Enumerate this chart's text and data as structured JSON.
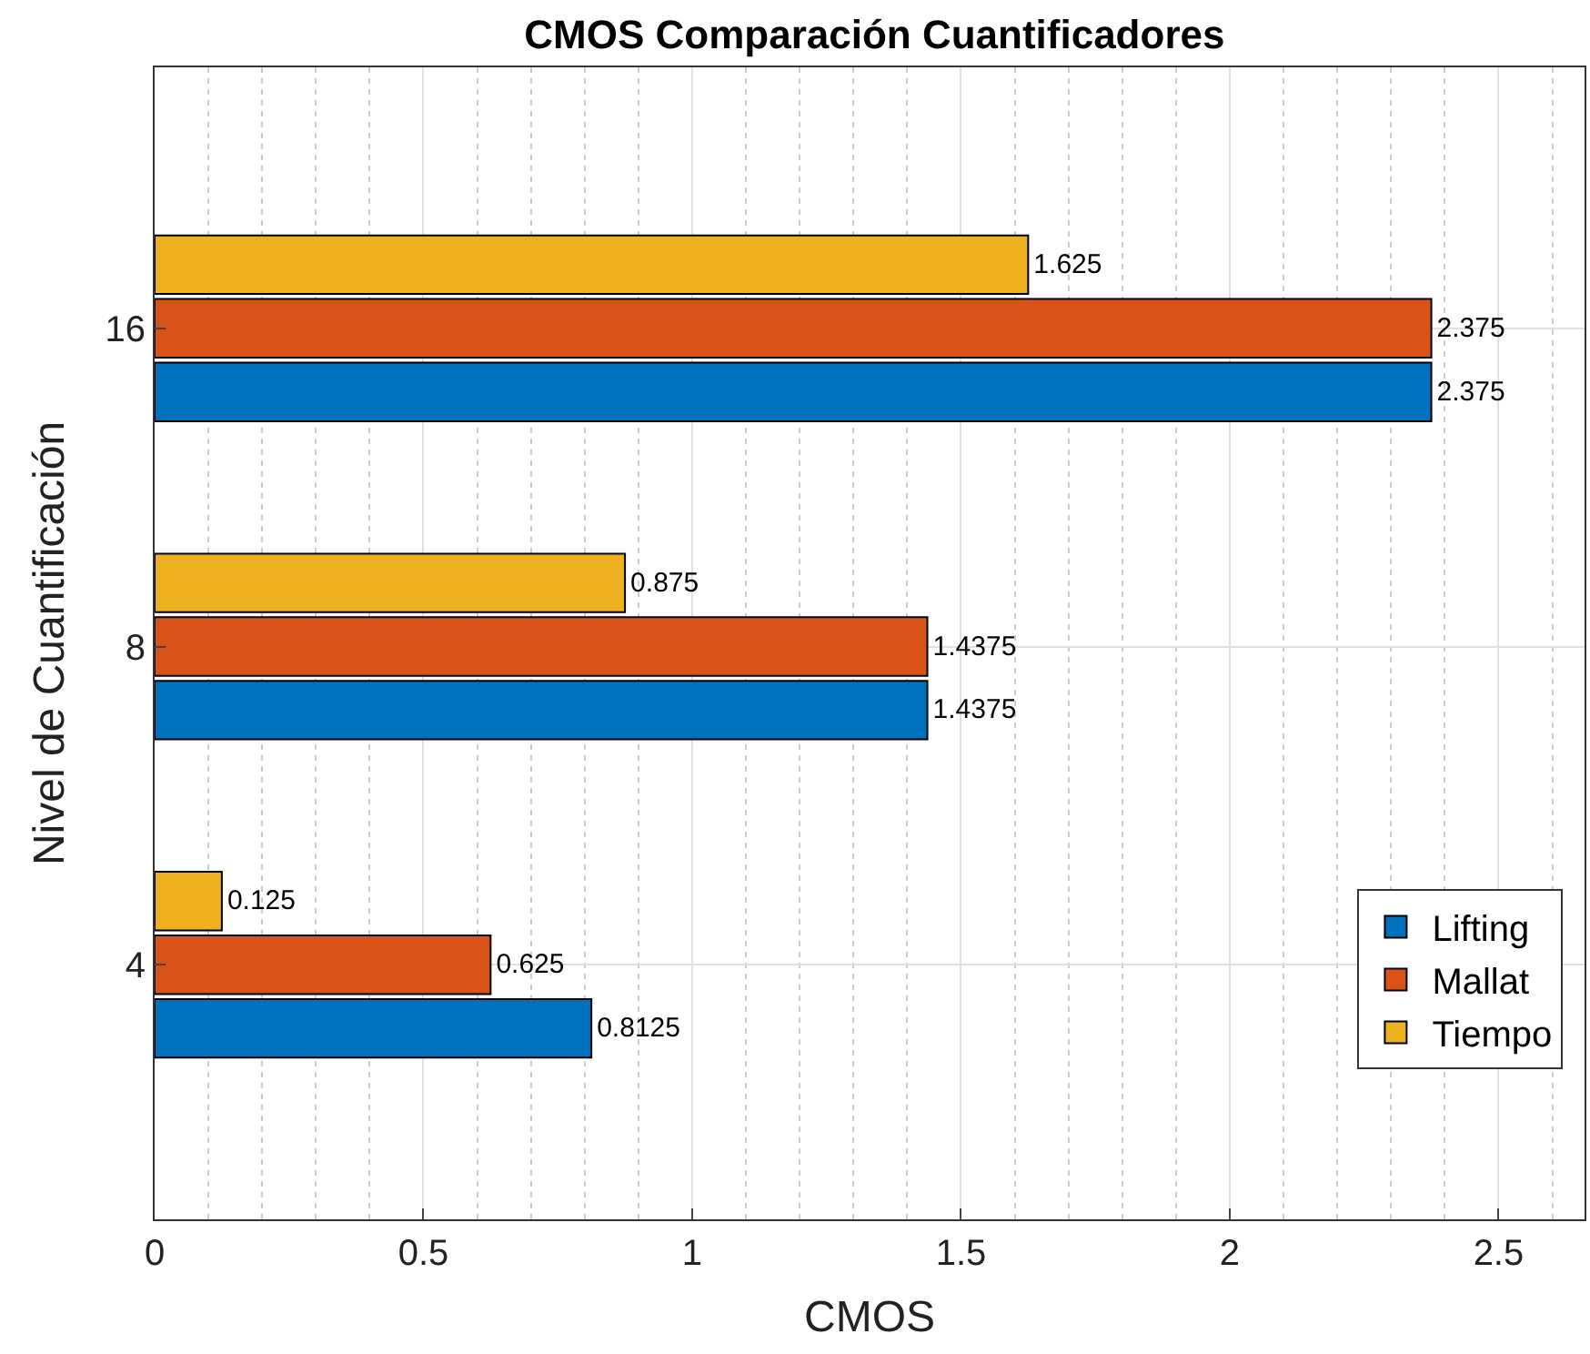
{
  "chart_data": {
    "type": "bar",
    "orientation": "horizontal",
    "title": "CMOS Comparación Cuantificadores",
    "xlabel": "CMOS",
    "ylabel": "Nivel de Cuantificación",
    "categories": [
      "16",
      "8",
      "4"
    ],
    "series": [
      {
        "name": "Lifting",
        "color": "#0072bd",
        "values": [
          2.375,
          1.4375,
          0.8125
        ]
      },
      {
        "name": "Mallat",
        "color": "#d95319",
        "values": [
          2.375,
          1.4375,
          0.625
        ]
      },
      {
        "name": "Tiempo",
        "color": "#edb120",
        "values": [
          1.625,
          0.875,
          0.125
        ]
      }
    ],
    "xlim": [
      0,
      2.66
    ],
    "xticks": [
      0,
      0.5,
      1,
      1.5,
      2,
      2.5
    ],
    "grid": true,
    "legend": "bottom right",
    "data_labels": true
  }
}
